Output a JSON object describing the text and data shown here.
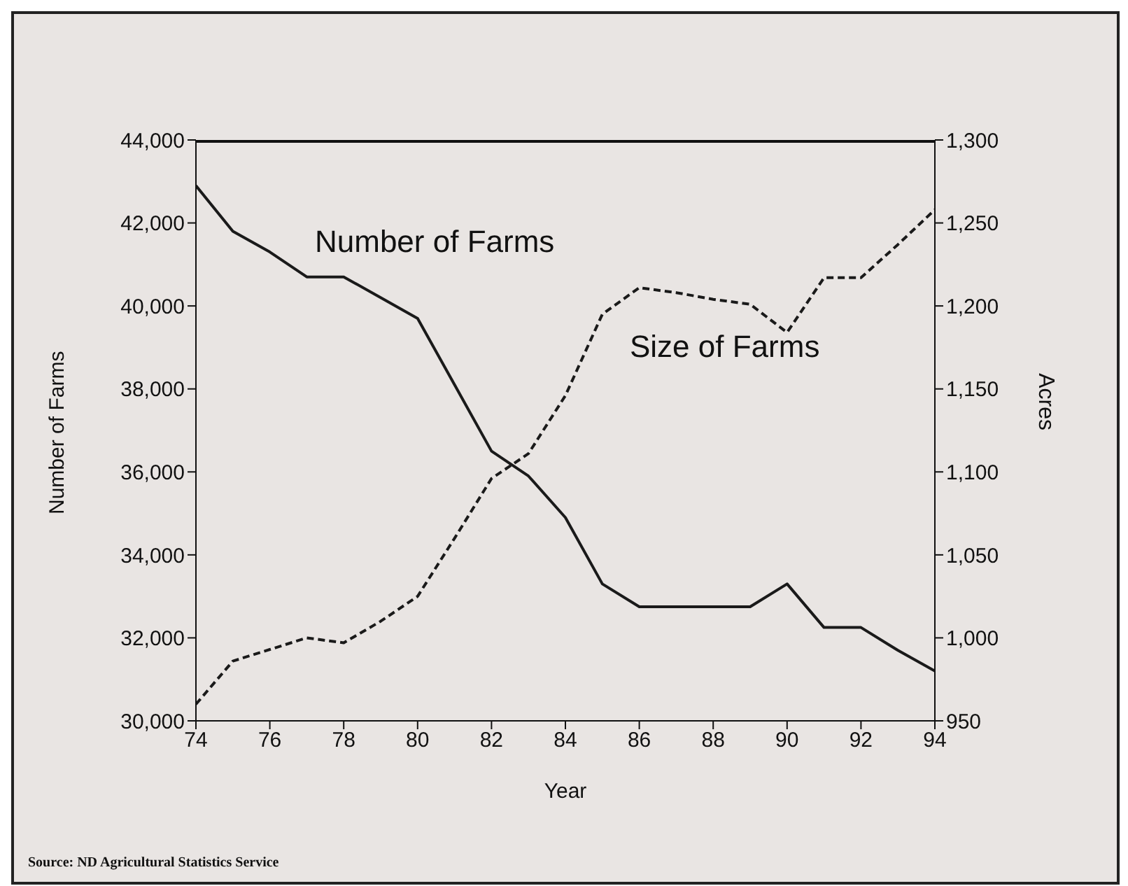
{
  "chart_data": {
    "type": "line",
    "xlabel": "Year",
    "ylabel": "Number of Farms",
    "y2label": "Acres",
    "x": [
      74,
      75,
      76,
      77,
      78,
      79,
      80,
      81,
      82,
      83,
      84,
      85,
      86,
      87,
      88,
      89,
      90,
      91,
      92,
      93,
      94
    ],
    "series": [
      {
        "name": "Number of Farms",
        "color": "#1a1a1a",
        "line_style": "solid",
        "values": [
          42900,
          41800,
          41300,
          40700,
          40700,
          40200,
          39700,
          38100,
          36500,
          35900,
          34900,
          33300,
          32750,
          32750,
          32750,
          32750,
          33300,
          32250,
          32250,
          31700,
          31200
        ]
      },
      {
        "name": "Size of Farms",
        "color": "#1a1a1a",
        "line_style": "dashed",
        "axis": "y2",
        "values": [
          960,
          986,
          993,
          1000,
          997,
          1010,
          1025,
          1060,
          1096,
          1111,
          1146,
          1195,
          1211,
          1208,
          1204,
          1201,
          1184,
          1217,
          1217,
          1237,
          1258
        ]
      }
    ],
    "xlim": [
      74,
      94
    ],
    "xticks": [
      74,
      76,
      78,
      80,
      82,
      84,
      86,
      88,
      90,
      92,
      94
    ],
    "ylim": [
      30000,
      44000
    ],
    "yticks": [
      {
        "value": 30000,
        "label": "30,000"
      },
      {
        "value": 32000,
        "label": "32,000"
      },
      {
        "value": 34000,
        "label": "34,000"
      },
      {
        "value": 36000,
        "label": "36,000"
      },
      {
        "value": 38000,
        "label": "38,000"
      },
      {
        "value": 40000,
        "label": "40,000"
      },
      {
        "value": 42000,
        "label": "42,000"
      },
      {
        "value": 44000,
        "label": "44,000"
      }
    ],
    "y2lim": [
      950,
      1300
    ],
    "y2ticks": [
      950,
      {
        "value": 1000,
        "label": "1,000"
      },
      {
        "value": 1050,
        "label": "1,050"
      },
      {
        "value": 1100,
        "label": "1,100"
      },
      {
        "value": 1150,
        "label": "1,150"
      },
      {
        "value": 1200,
        "label": "1,200"
      },
      {
        "value": 1250,
        "label": "1,250"
      },
      {
        "value": 1300,
        "label": "1,300"
      }
    ],
    "marker": "none",
    "annotations": [
      "Source: ND Agricultural Statistics Service"
    ]
  }
}
